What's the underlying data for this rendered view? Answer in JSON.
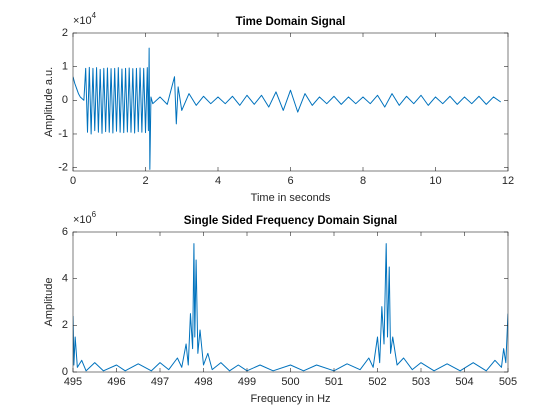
{
  "chart_data": [
    {
      "type": "line",
      "title": "Time Domain Signal",
      "x_label": "Time in seconds",
      "y_label": "Amplitude a.u.",
      "y_multiplier": "×10",
      "y_exponent": "4",
      "xlim": [
        0,
        12
      ],
      "xticks": [
        0,
        2,
        4,
        6,
        8,
        10,
        12
      ],
      "ylim": [
        -2.1,
        2
      ],
      "yticks": [
        -2,
        -1,
        0,
        1,
        2
      ],
      "color": "#0072bd",
      "x": [
        0,
        0.05,
        0.1,
        0.15,
        0.2,
        0.25,
        0.3,
        0.35,
        0.4,
        0.45,
        0.5,
        0.55,
        0.6,
        0.65,
        0.7,
        0.75,
        0.8,
        0.85,
        0.9,
        0.95,
        1.0,
        1.05,
        1.1,
        1.15,
        1.2,
        1.25,
        1.3,
        1.35,
        1.4,
        1.45,
        1.5,
        1.55,
        1.6,
        1.65,
        1.7,
        1.75,
        1.8,
        1.85,
        1.9,
        1.95,
        2.0,
        2.05,
        2.08,
        2.1,
        2.12,
        2.15,
        2.2,
        2.4,
        2.6,
        2.8,
        2.85,
        2.9,
        3.0,
        3.2,
        3.4,
        3.6,
        3.8,
        4.0,
        4.2,
        4.4,
        4.6,
        4.8,
        5.0,
        5.2,
        5.4,
        5.6,
        5.8,
        6.0,
        6.2,
        6.4,
        6.6,
        6.8,
        7.0,
        7.2,
        7.4,
        7.6,
        7.8,
        8.0,
        8.2,
        8.4,
        8.6,
        8.8,
        9.0,
        9.2,
        9.4,
        9.6,
        9.8,
        10.0,
        10.2,
        10.4,
        10.6,
        10.8,
        11.0,
        11.2,
        11.4,
        11.6,
        11.8
      ],
      "values": [
        0.7,
        0.5,
        0.35,
        0.2,
        0.1,
        0.05,
        0.0,
        0.95,
        -0.95,
        0.98,
        -1.0,
        0.95,
        -0.9,
        0.97,
        -0.95,
        0.92,
        -0.98,
        0.95,
        -0.93,
        0.96,
        -0.95,
        0.94,
        -0.97,
        0.95,
        -0.92,
        0.97,
        -0.95,
        0.93,
        -0.96,
        0.95,
        -0.94,
        0.96,
        -0.95,
        0.94,
        -0.97,
        0.95,
        -0.93,
        0.96,
        -0.95,
        0.95,
        -0.96,
        0.97,
        -0.9,
        1.55,
        -2.05,
        0.1,
        -0.1,
        0.1,
        -0.12,
        0.7,
        -0.7,
        0.4,
        -0.3,
        0.2,
        -0.15,
        0.12,
        -0.1,
        0.1,
        -0.1,
        0.12,
        -0.15,
        0.15,
        -0.12,
        0.15,
        -0.2,
        0.25,
        -0.3,
        0.3,
        -0.35,
        0.2,
        -0.15,
        0.1,
        -0.1,
        0.12,
        -0.12,
        0.1,
        -0.1,
        0.1,
        -0.1,
        0.15,
        -0.2,
        0.2,
        -0.15,
        0.12,
        -0.1,
        0.15,
        -0.15,
        0.1,
        -0.1,
        0.12,
        -0.12,
        0.1,
        -0.1,
        0.12,
        -0.12,
        0.1,
        -0.05
      ]
    },
    {
      "type": "line",
      "title": "Single Sided Frequency Domain Signal",
      "x_label": "Frequency in Hz",
      "y_label": "Amplitude",
      "y_multiplier": "×10",
      "y_exponent": "6",
      "xlim": [
        495,
        505
      ],
      "xticks": [
        495,
        496,
        497,
        498,
        499,
        500,
        501,
        502,
        503,
        504,
        505
      ],
      "ylim": [
        0,
        6
      ],
      "yticks": [
        0,
        2,
        4,
        6
      ],
      "color": "#0072bd",
      "x": [
        495.0,
        495.02,
        495.05,
        495.1,
        495.2,
        495.3,
        495.5,
        495.7,
        496.0,
        496.2,
        496.5,
        496.8,
        497.0,
        497.2,
        497.4,
        497.5,
        497.6,
        497.65,
        497.7,
        497.75,
        497.78,
        497.8,
        497.83,
        497.87,
        497.92,
        498.0,
        498.1,
        498.2,
        498.4,
        498.6,
        498.8,
        499.0,
        499.3,
        499.6,
        500.0,
        500.3,
        500.6,
        501.0,
        501.3,
        501.6,
        501.8,
        501.9,
        502.0,
        502.05,
        502.1,
        502.15,
        502.2,
        502.23,
        502.27,
        502.3,
        502.35,
        502.45,
        502.6,
        502.8,
        503.0,
        503.3,
        503.6,
        503.9,
        504.2,
        504.5,
        504.7,
        504.85,
        504.9,
        504.95,
        505.0
      ],
      "values": [
        2.4,
        0.3,
        1.5,
        0.2,
        0.5,
        0.05,
        0.4,
        0.05,
        0.3,
        0.05,
        0.35,
        0.05,
        0.4,
        0.1,
        0.6,
        0.2,
        1.2,
        0.3,
        2.5,
        1.0,
        5.5,
        1.5,
        4.8,
        0.8,
        1.8,
        0.3,
        0.8,
        0.1,
        0.4,
        0.05,
        0.3,
        0.05,
        0.3,
        0.05,
        0.3,
        0.05,
        0.3,
        0.05,
        0.35,
        0.1,
        0.6,
        0.2,
        1.5,
        0.4,
        2.8,
        1.2,
        5.5,
        1.5,
        4.5,
        0.8,
        1.5,
        0.3,
        0.6,
        0.1,
        0.4,
        0.05,
        0.35,
        0.05,
        0.4,
        0.05,
        0.5,
        0.2,
        1.0,
        0.4,
        2.5
      ]
    }
  ]
}
